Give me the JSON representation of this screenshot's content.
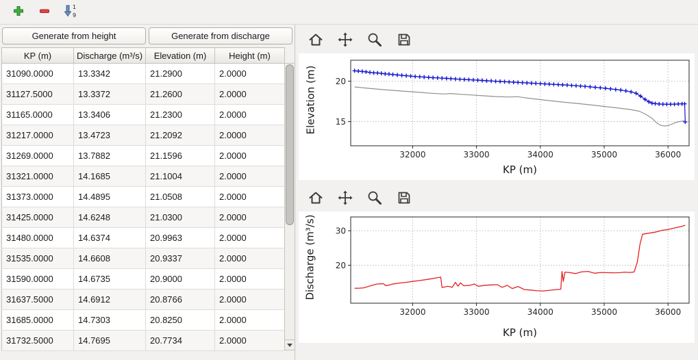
{
  "main_toolbar": {
    "buttons": [
      {
        "name": "add-row",
        "icon": "plus-icon"
      },
      {
        "name": "remove-row",
        "icon": "minus-icon"
      },
      {
        "name": "sort-rows",
        "icon": "sort-ascending-icon"
      }
    ],
    "sort_digit_top": "1",
    "sort_digit_bottom": "9"
  },
  "actions": {
    "generate_from_height": "Generate from height",
    "generate_from_discharge": "Generate from discharge"
  },
  "table": {
    "columns": [
      "KP (m)",
      "Discharge (m³/s)",
      "Elevation (m)",
      "Height (m)"
    ],
    "rows": [
      [
        "31090.0000",
        "13.3342",
        "21.2900",
        "2.0000"
      ],
      [
        "31127.5000",
        "13.3372",
        "21.2600",
        "2.0000"
      ],
      [
        "31165.0000",
        "13.3406",
        "21.2300",
        "2.0000"
      ],
      [
        "31217.0000",
        "13.4723",
        "21.2092",
        "2.0000"
      ],
      [
        "31269.0000",
        "13.7882",
        "21.1596",
        "2.0000"
      ],
      [
        "31321.0000",
        "14.1685",
        "21.1004",
        "2.0000"
      ],
      [
        "31373.0000",
        "14.4895",
        "21.0508",
        "2.0000"
      ],
      [
        "31425.0000",
        "14.6248",
        "21.0300",
        "2.0000"
      ],
      [
        "31480.0000",
        "14.6374",
        "20.9963",
        "2.0000"
      ],
      [
        "31535.0000",
        "14.6608",
        "20.9337",
        "2.0000"
      ],
      [
        "31590.0000",
        "14.6735",
        "20.9000",
        "2.0000"
      ],
      [
        "31637.5000",
        "14.6912",
        "20.8766",
        "2.0000"
      ],
      [
        "31685.0000",
        "14.7303",
        "20.8250",
        "2.0000"
      ],
      [
        "31732.5000",
        "14.7695",
        "20.7734",
        "2.0000"
      ]
    ]
  },
  "plot_toolbar_icons": [
    "home-icon",
    "pan-icon",
    "zoom-icon",
    "save-icon"
  ],
  "chart_data": [
    {
      "type": "line",
      "title": "",
      "xlabel": "KP (m)",
      "ylabel": "Elevation (m)",
      "xlim": [
        31030,
        36330
      ],
      "ylim": [
        12.0,
        22.6
      ],
      "xticks": [
        32000,
        33000,
        34000,
        35000,
        36000
      ],
      "yticks": [
        15,
        20
      ],
      "grid": true,
      "legend": false,
      "series": [
        {
          "name": "water-surface-elevation",
          "color": "#1414cc",
          "marker": "+",
          "width": 1.2,
          "x": [
            31090,
            31150,
            31210,
            31270,
            31330,
            31390,
            31450,
            31510,
            31570,
            31630,
            31690,
            31760,
            31830,
            31900,
            31970,
            32040,
            32110,
            32180,
            32250,
            32320,
            32390,
            32460,
            32530,
            32600,
            32670,
            32740,
            32810,
            32880,
            32950,
            33020,
            33090,
            33160,
            33230,
            33300,
            33370,
            33440,
            33510,
            33580,
            33650,
            33720,
            33790,
            33860,
            33930,
            34000,
            34070,
            34140,
            34210,
            34280,
            34350,
            34420,
            34490,
            34560,
            34630,
            34700,
            34780,
            34860,
            34940,
            35020,
            35100,
            35180,
            35260,
            35340,
            35420,
            35500,
            35570,
            35640,
            35700,
            35750,
            35800,
            35860,
            35920,
            35980,
            36040,
            36100,
            36160,
            36220,
            36260,
            36270
          ],
          "y": [
            21.29,
            21.25,
            21.21,
            21.16,
            21.09,
            21.04,
            21.02,
            20.97,
            20.91,
            20.88,
            20.83,
            20.78,
            20.73,
            20.68,
            20.63,
            20.59,
            20.55,
            20.51,
            20.47,
            20.44,
            20.41,
            20.38,
            20.35,
            20.32,
            20.28,
            20.25,
            20.22,
            20.19,
            20.16,
            20.13,
            20.1,
            20.06,
            20.03,
            20.0,
            19.97,
            19.94,
            19.91,
            19.88,
            19.85,
            19.82,
            19.79,
            19.76,
            19.73,
            19.7,
            19.67,
            19.64,
            19.61,
            19.58,
            19.55,
            19.52,
            19.48,
            19.44,
            19.4,
            19.36,
            19.3,
            19.24,
            19.18,
            19.12,
            19.05,
            18.98,
            18.9,
            18.8,
            18.68,
            18.5,
            18.15,
            17.75,
            17.45,
            17.28,
            17.22,
            17.18,
            17.16,
            17.15,
            17.15,
            17.16,
            17.18,
            17.2,
            17.2,
            14.95
          ]
        },
        {
          "name": "bed-elevation",
          "color": "#909090",
          "marker": null,
          "width": 1.2,
          "x": [
            31090,
            31300,
            31500,
            31700,
            31900,
            32100,
            32300,
            32500,
            32600,
            32750,
            32900,
            33100,
            33300,
            33500,
            33650,
            33800,
            34000,
            34200,
            34400,
            34600,
            34800,
            35000,
            35200,
            35400,
            35550,
            35650,
            35750,
            35820,
            35880,
            35940,
            36000,
            36060,
            36120,
            36180,
            36240,
            36270
          ],
          "y": [
            19.29,
            19.12,
            18.99,
            18.86,
            18.74,
            18.62,
            18.5,
            18.42,
            18.48,
            18.38,
            18.3,
            18.2,
            18.1,
            18.05,
            18.08,
            17.9,
            17.72,
            17.55,
            17.38,
            17.22,
            17.05,
            16.88,
            16.7,
            16.5,
            16.28,
            15.9,
            15.4,
            14.85,
            14.55,
            14.45,
            14.5,
            14.68,
            14.88,
            15.0,
            15.08,
            15.1
          ]
        }
      ]
    },
    {
      "type": "line",
      "title": "",
      "xlabel": "KP (m)",
      "ylabel": "Discharge (m³/s)",
      "xlim": [
        31030,
        36330
      ],
      "ylim": [
        9.0,
        34.0
      ],
      "xticks": [
        32000,
        33000,
        34000,
        35000,
        36000
      ],
      "yticks": [
        20,
        30
      ],
      "grid": true,
      "legend": false,
      "series": [
        {
          "name": "discharge",
          "color": "#e52020",
          "marker": null,
          "width": 1.3,
          "x": [
            31090,
            31160,
            31230,
            31300,
            31370,
            31440,
            31500,
            31545,
            31575,
            31640,
            31700,
            31800,
            31900,
            32000,
            32100,
            32200,
            32300,
            32400,
            32440,
            32460,
            32550,
            32620,
            32670,
            32710,
            32750,
            32800,
            32900,
            32970,
            33030,
            33130,
            33230,
            33330,
            33400,
            33480,
            33560,
            33650,
            33750,
            33850,
            33950,
            34050,
            34150,
            34250,
            34320,
            34340,
            34360,
            34385,
            34450,
            34550,
            34650,
            34750,
            34850,
            34950,
            35050,
            35150,
            35250,
            35320,
            35400,
            35470,
            35520,
            35560,
            35600,
            35700,
            35800,
            35900,
            36000,
            36100,
            36200,
            36270
          ],
          "y": [
            13.33,
            13.34,
            13.45,
            13.8,
            14.2,
            14.55,
            14.62,
            14.65,
            14.1,
            14.3,
            14.6,
            14.85,
            15.05,
            15.3,
            15.55,
            15.8,
            16.1,
            16.45,
            16.55,
            13.55,
            13.9,
            13.6,
            15.05,
            13.95,
            14.9,
            14.05,
            14.2,
            14.55,
            13.9,
            14.2,
            14.3,
            14.35,
            13.6,
            14.15,
            13.25,
            13.85,
            12.95,
            12.8,
            12.6,
            12.55,
            12.75,
            12.95,
            13.05,
            18.2,
            15.3,
            18.0,
            17.9,
            17.6,
            18.1,
            18.2,
            17.7,
            17.9,
            17.85,
            17.8,
            17.85,
            18.0,
            17.9,
            18.05,
            21.0,
            26.0,
            29.0,
            29.3,
            29.6,
            30.1,
            30.35,
            30.8,
            31.2,
            31.6
          ]
        }
      ]
    }
  ]
}
